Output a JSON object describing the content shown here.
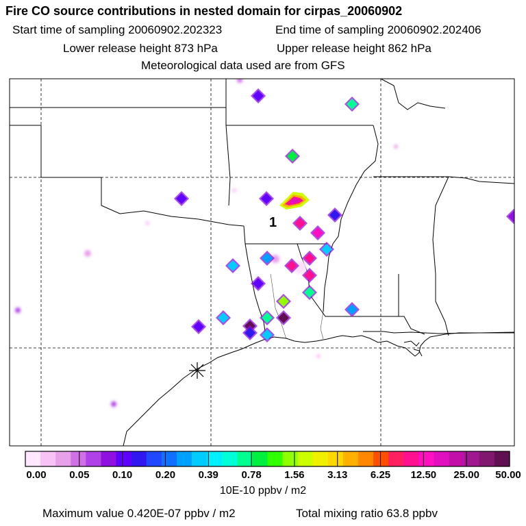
{
  "header": {
    "title": "Fire CO source contributions in nested domain for cirpas_20060902",
    "start_label": "Start time of sampling 20060902.202323",
    "end_label": "End time of sampling 20060902.202406",
    "lower_label": "Lower release height  873 hPa",
    "upper_label": "Upper release height  862 hPa",
    "met_label": "Meteorological data used are from GFS"
  },
  "map": {
    "site_label": "1"
  },
  "colorbar": {
    "units": "10E-10 ppbv / m2",
    "tick_labels": [
      "0.00",
      "0.05",
      "0.10",
      "0.20",
      "0.39",
      "0.78",
      "1.56",
      "3.13",
      "6.25",
      "12.50",
      "25.00",
      "50.00"
    ],
    "colors": [
      "#ffe8ff",
      "#f7c3f7",
      "#e8a0e8",
      "#d070e6",
      "#b040e8",
      "#9010e0",
      "#6000ff",
      "#3018ee",
      "#2048ff",
      "#1070ff",
      "#00a0ff",
      "#00ccff",
      "#00f0ff",
      "#00ffd8",
      "#00ff90",
      "#00f040",
      "#30ff00",
      "#90ff00",
      "#ccff00",
      "#f0f000",
      "#ffd800",
      "#ffb000",
      "#ff8800",
      "#ff5000",
      "#ff2060",
      "#ff1090",
      "#ff10c0",
      "#e010c0",
      "#c010a8",
      "#a01890",
      "#801870",
      "#601050"
    ]
  },
  "footer": {
    "max_label": "Maximum value  0.420E-07 ppbv / m2",
    "total_label": "Total mixing ratio       63.8 ppbv"
  }
}
